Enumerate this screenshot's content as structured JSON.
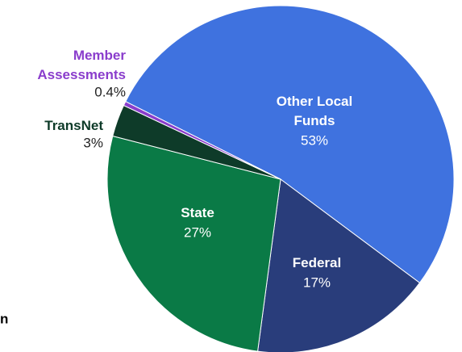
{
  "chart_data": {
    "type": "pie",
    "categories": [
      "Other Local\nFunds",
      "Federal",
      "State",
      "TransNet",
      "Member\nAssessments"
    ],
    "values": [
      53,
      17,
      27,
      3,
      0.4
    ],
    "value_labels": [
      "53%",
      "17%",
      "27%",
      "3%",
      "0.4%"
    ],
    "colors": [
      "#3f72df",
      "#293d7b",
      "#0a7a46",
      "#0e3b29",
      "#8a3dcc"
    ],
    "label_colors": [
      "#ffffff",
      "#ffffff",
      "#ffffff",
      "#0e3b29",
      "#8a3dcc"
    ],
    "fragment": "n"
  }
}
